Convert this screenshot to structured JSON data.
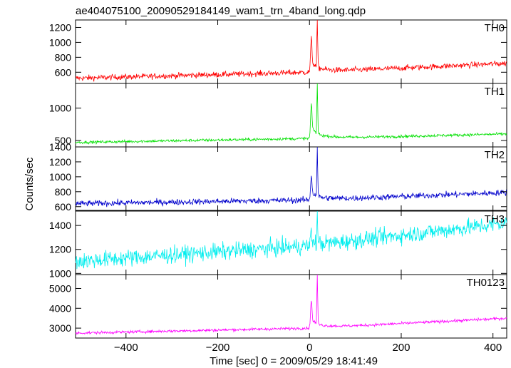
{
  "chart_data": {
    "type": "line",
    "title": "ae404075100_20090529184149_wam1_trn_4band_long.qdp",
    "xlabel": "Time [sec] 0 = 2009/05/29 18:41:49",
    "ylabel": "Counts/sec",
    "xlim": [
      -510,
      430
    ],
    "x_ticks": [
      -400,
      -200,
      0,
      200,
      400
    ],
    "x_tick_labels": [
      "−400",
      "−200",
      "0",
      "200",
      "400"
    ],
    "panels": [
      {
        "name": "TH0",
        "color": "#ff0000",
        "ylim": [
          450,
          1300
        ],
        "y_ticks": [
          600,
          800,
          1000,
          1200
        ],
        "y_tick_labels": [
          "600",
          "800",
          "1000",
          "1200"
        ],
        "baseline_start": 520,
        "baseline_pre": 600,
        "baseline_end": 720,
        "noise": 38,
        "peak1": 1010,
        "peak2": 1300
      },
      {
        "name": "TH1",
        "color": "#00e000",
        "ylim": [
          400,
          1380
        ],
        "y_ticks": [
          500,
          1000
        ],
        "y_tick_labels": [
          "500",
          "1000"
        ],
        "baseline_start": 470,
        "baseline_pre": 530,
        "baseline_end": 600,
        "noise": 22,
        "peak1": 1020,
        "peak2": 1380
      },
      {
        "name": "TH2",
        "color": "#0000cc",
        "ylim": [
          550,
          1400
        ],
        "y_ticks": [
          600,
          800,
          1000,
          1200,
          1400
        ],
        "y_tick_labels": [
          "600",
          "800",
          "1000",
          "1200",
          "1400"
        ],
        "baseline_start": 640,
        "baseline_pre": 690,
        "baseline_end": 790,
        "noise": 40,
        "peak1": 990,
        "peak2": 1400
      },
      {
        "name": "TH3",
        "color": "#00eeee",
        "ylim": [
          990,
          1520
        ],
        "y_ticks": [
          1000,
          1200,
          1400
        ],
        "y_tick_labels": [
          "1000",
          "1200",
          "1400"
        ],
        "baseline_start": 1100,
        "baseline_pre": 1230,
        "baseline_end": 1420,
        "noise": 70,
        "peak1": 1330,
        "peak2": 1520
      },
      {
        "name": "TH0123",
        "color": "#ff00ff",
        "ylim": [
          2500,
          5700
        ],
        "y_ticks": [
          3000,
          4000,
          5000
        ],
        "y_tick_labels": [
          "3000",
          "4000",
          "5000"
        ],
        "baseline_start": 2750,
        "baseline_pre": 3000,
        "baseline_end": 3500,
        "noise": 70,
        "peak1": 4300,
        "peak2": 5700
      }
    ]
  }
}
